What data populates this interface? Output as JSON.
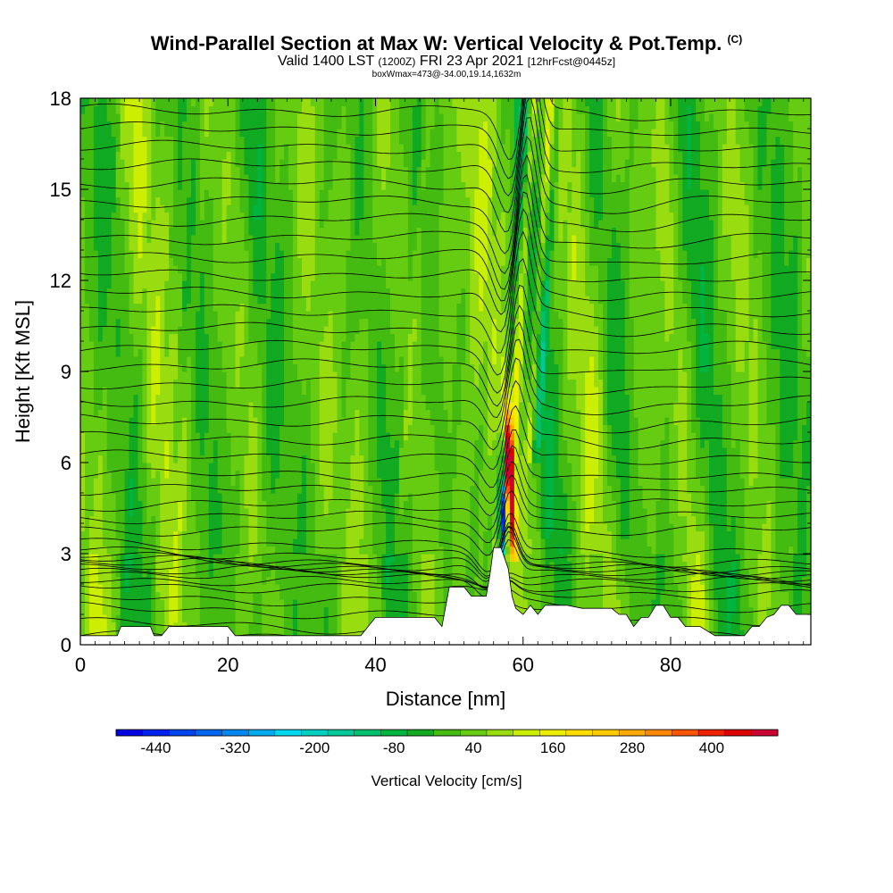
{
  "title": "Wind-Parallel Section at Max W: Vertical Velocity & Pot.Temp.",
  "title_mark": "(C)",
  "subtitle_parts": {
    "a": "Valid 1400 LST",
    "b": "(1200Z)",
    "c": "FRI 23 Apr 2021",
    "d": "[12hrFcst@0445z]"
  },
  "subtitle2": "boxWmax=473@-34.00,19.14,1632m",
  "chart_data": {
    "type": "heatmap",
    "xlabel": "Distance [nm]",
    "ylabel": "Height [Kft MSL]",
    "xlim": [
      0,
      99
    ],
    "ylim": [
      0,
      18
    ],
    "x_ticks": [
      0,
      20,
      40,
      60,
      80
    ],
    "y_ticks": [
      0,
      3,
      6,
      9,
      12,
      15,
      18
    ],
    "colorbar": {
      "label": "Vertical Velocity [cm/s]",
      "tick_labels": [
        "-440",
        "-320",
        "-200",
        "-80",
        "40",
        "160",
        "280",
        "400"
      ],
      "tick_values": [
        -440,
        -320,
        -200,
        -80,
        40,
        160,
        280,
        400
      ],
      "range": [
        -500,
        500
      ],
      "bins": 25,
      "colors": [
        "#0000e0",
        "#0022ee",
        "#0044ee",
        "#0066f0",
        "#0088f0",
        "#00aaf0",
        "#00d8f0",
        "#00d0c0",
        "#00c898",
        "#00c070",
        "#00b440",
        "#11aa22",
        "#44bb11",
        "#66cc11",
        "#99dd11",
        "#ccee00",
        "#eeee00",
        "#ffdd00",
        "#ffcc00",
        "#ffaa00",
        "#ff8800",
        "#ff5500",
        "#ee2200",
        "#dd0000",
        "#cc0033"
      ]
    },
    "theta_contours": {
      "base_levels_kft": [
        0.3,
        0.7,
        1.2,
        1.6,
        2.0,
        2.2,
        2.4,
        2.5,
        2.6,
        2.7,
        2.8,
        2.9,
        3.1,
        3.4,
        3.8,
        4.2,
        4.6,
        5.1,
        5.6,
        6.2,
        6.8,
        7.4,
        8.0,
        8.6,
        9.2,
        9.8,
        10.4,
        11.0,
        11.6,
        12.2,
        12.8,
        13.4,
        14.0,
        14.6,
        15.2,
        15.8,
        16.4,
        17.0,
        17.6
      ]
    },
    "terrain_kft": {
      "x": [
        0,
        5,
        5.5,
        9.5,
        10,
        11,
        12,
        20,
        21,
        38,
        39,
        40,
        43,
        48,
        49,
        50,
        52,
        53,
        54,
        55,
        55.5,
        56,
        57,
        58,
        58.5,
        59,
        60,
        61,
        62,
        63,
        66,
        68,
        70,
        71,
        72,
        73,
        74,
        75,
        76,
        77,
        78,
        79,
        80,
        81,
        82,
        84,
        86,
        88,
        90,
        91,
        92,
        93,
        94,
        95,
        96,
        97,
        98,
        99
      ],
      "h": [
        0.3,
        0.3,
        0.6,
        0.6,
        0.3,
        0.3,
        0.6,
        0.6,
        0.3,
        0.3,
        0.6,
        0.9,
        0.9,
        0.9,
        0.6,
        1.9,
        1.9,
        1.6,
        1.6,
        1.6,
        2.3,
        3.2,
        3.2,
        2.5,
        1.6,
        1.2,
        1.0,
        1.3,
        1.0,
        1.3,
        1.3,
        1.2,
        1.2,
        1.2,
        1.2,
        1.0,
        1.0,
        0.6,
        0.9,
        0.9,
        1.3,
        1.3,
        0.9,
        0.9,
        0.6,
        0.6,
        0.3,
        0.3,
        0.3,
        0.6,
        0.6,
        0.9,
        1.0,
        1.3,
        1.3,
        1.0,
        1.0,
        1.0
      ]
    }
  }
}
